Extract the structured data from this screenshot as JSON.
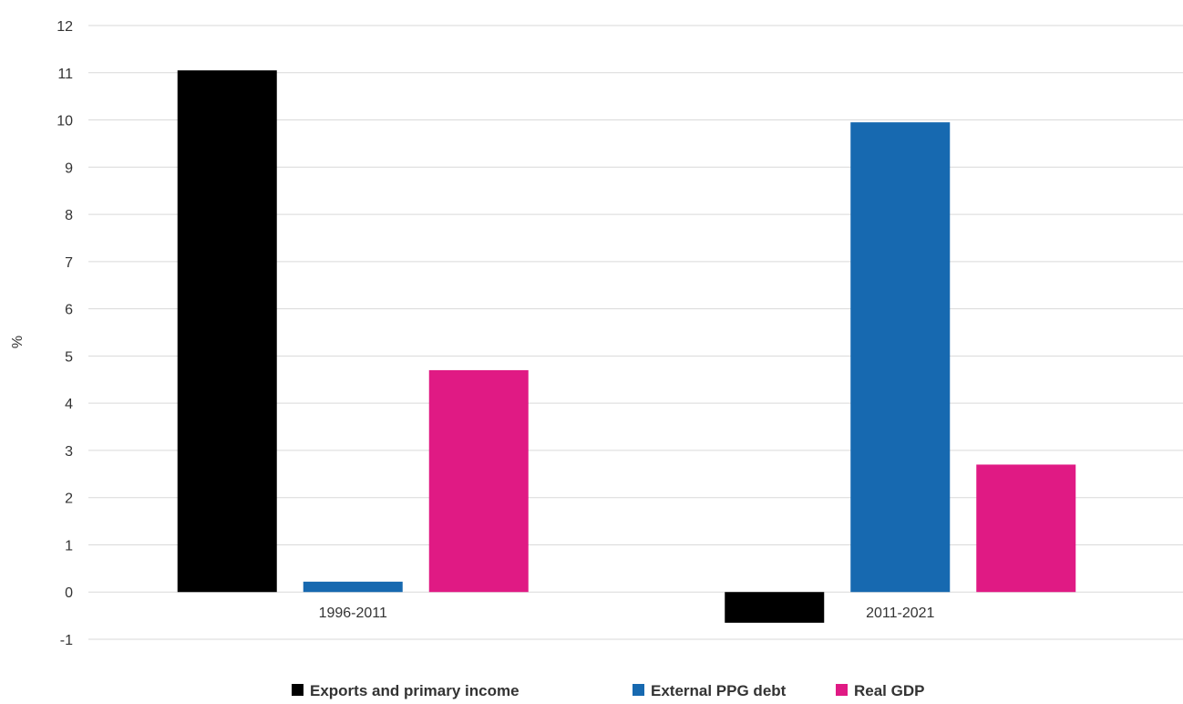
{
  "chart_data": {
    "type": "bar",
    "title": "",
    "xlabel": "",
    "ylabel": "%",
    "ylim": [
      -1,
      12
    ],
    "yticks": [
      -1,
      0,
      1,
      2,
      3,
      4,
      5,
      6,
      7,
      8,
      9,
      10,
      11,
      12
    ],
    "grid": true,
    "legend": "bottom",
    "categories": [
      "1996-2011",
      "2011-2021"
    ],
    "series": [
      {
        "name": "Exports and primary income",
        "color": "#000000",
        "values": [
          11.05,
          -0.65
        ]
      },
      {
        "name": "External PPG debt",
        "color": "#1769b0",
        "values": [
          0.22,
          9.95
        ]
      },
      {
        "name": "Real GDP",
        "color": "#e01a84",
        "values": [
          4.7,
          2.7
        ]
      }
    ]
  }
}
